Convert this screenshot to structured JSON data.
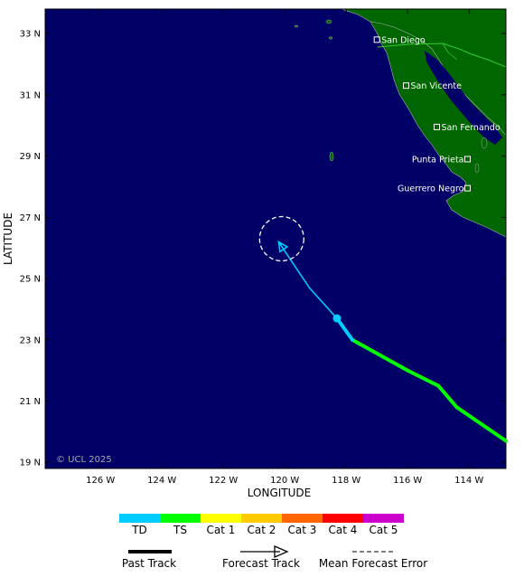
{
  "map": {
    "xlabel": "LONGITUDE",
    "ylabel": "LATITUDE",
    "lon_range": [
      -127.8,
      -112.8
    ],
    "lat_range": [
      18.8,
      33.8
    ],
    "lon_ticks": [
      {
        "value": -126,
        "label": "126 W"
      },
      {
        "value": -124,
        "label": "124 W"
      },
      {
        "value": -122,
        "label": "122 W"
      },
      {
        "value": -120,
        "label": "120 W"
      },
      {
        "value": -118,
        "label": "118 W"
      },
      {
        "value": -116,
        "label": "116 W"
      },
      {
        "value": -114,
        "label": "114 W"
      }
    ],
    "lat_ticks": [
      {
        "value": 19,
        "label": "19 N"
      },
      {
        "value": 21,
        "label": "21 N"
      },
      {
        "value": 23,
        "label": "23 N"
      },
      {
        "value": 25,
        "label": "25 N"
      },
      {
        "value": 27,
        "label": "27 N"
      },
      {
        "value": 29,
        "label": "29 N"
      },
      {
        "value": 31,
        "label": "31 N"
      },
      {
        "value": 33,
        "label": "33 N"
      }
    ],
    "copyright": "© UCL 2025",
    "colors": {
      "ocean": "#000066",
      "land": "#006600",
      "border": "#33cc33"
    },
    "cities": [
      {
        "name": "San Diego",
        "lon": -117.0,
        "lat": 32.8
      },
      {
        "name": "San Vicente",
        "lon": -116.05,
        "lat": 31.3
      },
      {
        "name": "San Fernando",
        "lon": -115.05,
        "lat": 29.95
      },
      {
        "name": "Punta Prieta",
        "lon": -114.05,
        "lat": 28.9
      },
      {
        "name": "Guerrero Negro",
        "lon": -114.05,
        "lat": 27.95
      }
    ]
  },
  "chart_data": {
    "type": "map-track",
    "past_track": [
      {
        "lon": -112.8,
        "lat": 19.7,
        "category": "TS"
      },
      {
        "lon": -114.4,
        "lat": 20.8,
        "category": "TS"
      },
      {
        "lon": -115.0,
        "lat": 21.5,
        "category": "TS"
      },
      {
        "lon": -116.0,
        "lat": 22.0,
        "category": "TS"
      },
      {
        "lon": -117.8,
        "lat": 23.0,
        "category": "TS"
      },
      {
        "lon": -118.3,
        "lat": 23.7,
        "category": "TD"
      }
    ],
    "current_position": {
      "lon": -118.3,
      "lat": 23.7,
      "category": "TD"
    },
    "forecast_track": [
      {
        "lon": -118.3,
        "lat": 23.7
      },
      {
        "lon": -119.2,
        "lat": 24.7
      },
      {
        "lon": -120.2,
        "lat": 26.2
      }
    ],
    "forecast_error_circle": {
      "center_lon": -120.1,
      "center_lat": 26.3,
      "radius_deg": 0.72
    }
  },
  "legend": {
    "categories": [
      {
        "label": "TD",
        "color": "#00ccff"
      },
      {
        "label": "TS",
        "color": "#00ff00"
      },
      {
        "label": "Cat 1",
        "color": "#ffff00"
      },
      {
        "label": "Cat 2",
        "color": "#ffcc00"
      },
      {
        "label": "Cat 3",
        "color": "#ff6600"
      },
      {
        "label": "Cat 4",
        "color": "#ff0000"
      },
      {
        "label": "Cat 5",
        "color": "#cc00cc"
      }
    ],
    "past_track_label": "Past Track",
    "forecast_track_label": "Forecast Track",
    "mean_error_label": "Mean Forecast Error"
  }
}
